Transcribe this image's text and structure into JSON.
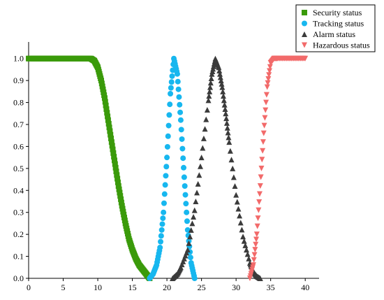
{
  "chart_data": {
    "type": "scatter",
    "title": "",
    "xlabel": "",
    "ylabel": "",
    "xlim": [
      0,
      42
    ],
    "ylim": [
      0,
      1.05
    ],
    "x_ticks": [
      0,
      5,
      10,
      15,
      20,
      25,
      30,
      35,
      40
    ],
    "y_ticks": [
      0.0,
      0.1,
      0.2,
      0.3,
      0.4,
      0.5,
      0.6,
      0.7,
      0.8,
      0.9,
      1.0
    ],
    "x_tick_labels": [
      "0",
      "5",
      "10",
      "15",
      "20",
      "25",
      "30",
      "35",
      "40"
    ],
    "y_tick_labels": [
      "0.0",
      "0.1",
      "0.2",
      "0.3",
      "0.4",
      "0.5",
      "0.6",
      "0.7",
      "0.8",
      "0.9",
      "1.0"
    ],
    "grid": false,
    "legend_position": "top-right",
    "series": [
      {
        "name": "Security status",
        "marker": "square",
        "color": "#3a9a0a",
        "points": [
          [
            0,
            1.0
          ],
          [
            1,
            1.0
          ],
          [
            2,
            1.0
          ],
          [
            3,
            1.0
          ],
          [
            4,
            1.0
          ],
          [
            5,
            1.0
          ],
          [
            6,
            1.0
          ],
          [
            7,
            1.0
          ],
          [
            8,
            1.0
          ],
          [
            9,
            1.0
          ],
          [
            9.5,
            0.99
          ],
          [
            10,
            0.96
          ],
          [
            10.5,
            0.9
          ],
          [
            11,
            0.82
          ],
          [
            11.5,
            0.72
          ],
          [
            12,
            0.62
          ],
          [
            12.5,
            0.52
          ],
          [
            13,
            0.42
          ],
          [
            13.5,
            0.33
          ],
          [
            14,
            0.25
          ],
          [
            14.5,
            0.18
          ],
          [
            15,
            0.13
          ],
          [
            15.5,
            0.09
          ],
          [
            16,
            0.06
          ],
          [
            16.5,
            0.04
          ],
          [
            17,
            0.02
          ],
          [
            17.5,
            0.0
          ]
        ]
      },
      {
        "name": "Tracking status",
        "marker": "circle",
        "color": "#17b7ef",
        "points": [
          [
            17.5,
            0.0
          ],
          [
            18,
            0.02
          ],
          [
            18.5,
            0.06
          ],
          [
            19,
            0.14
          ],
          [
            19.5,
            0.3
          ],
          [
            20,
            0.55
          ],
          [
            20.5,
            0.84
          ],
          [
            21,
            1.0
          ],
          [
            21.5,
            0.93
          ],
          [
            22,
            0.72
          ],
          [
            22.5,
            0.46
          ],
          [
            23,
            0.22
          ],
          [
            23.5,
            0.07
          ],
          [
            24,
            0.0
          ]
        ]
      },
      {
        "name": "Alarm status",
        "marker": "triangle-up",
        "color": "#3b3b3b",
        "points": [
          [
            20.8,
            0.0
          ],
          [
            21.5,
            0.02
          ],
          [
            22,
            0.05
          ],
          [
            23,
            0.13
          ],
          [
            24,
            0.31
          ],
          [
            25,
            0.55
          ],
          [
            26,
            0.81
          ],
          [
            26.5,
            0.93
          ],
          [
            27,
            1.0
          ],
          [
            27.5,
            0.96
          ],
          [
            28,
            0.87
          ],
          [
            28.5,
            0.75
          ],
          [
            29,
            0.62
          ],
          [
            30,
            0.38
          ],
          [
            31,
            0.19
          ],
          [
            32,
            0.07
          ],
          [
            32.5,
            0.03
          ],
          [
            33,
            0.01
          ],
          [
            33.5,
            0.0
          ]
        ]
      },
      {
        "name": "Hazardous status",
        "marker": "triangle-down",
        "color": "#f26a6a",
        "points": [
          [
            32,
            0.0
          ],
          [
            32.5,
            0.06
          ],
          [
            33,
            0.2
          ],
          [
            33.5,
            0.42
          ],
          [
            34,
            0.66
          ],
          [
            34.5,
            0.87
          ],
          [
            35,
            0.98
          ],
          [
            35.5,
            1.0
          ],
          [
            36,
            1.0
          ],
          [
            37,
            1.0
          ],
          [
            38,
            1.0
          ],
          [
            39,
            1.0
          ],
          [
            40,
            1.0
          ]
        ]
      }
    ]
  }
}
